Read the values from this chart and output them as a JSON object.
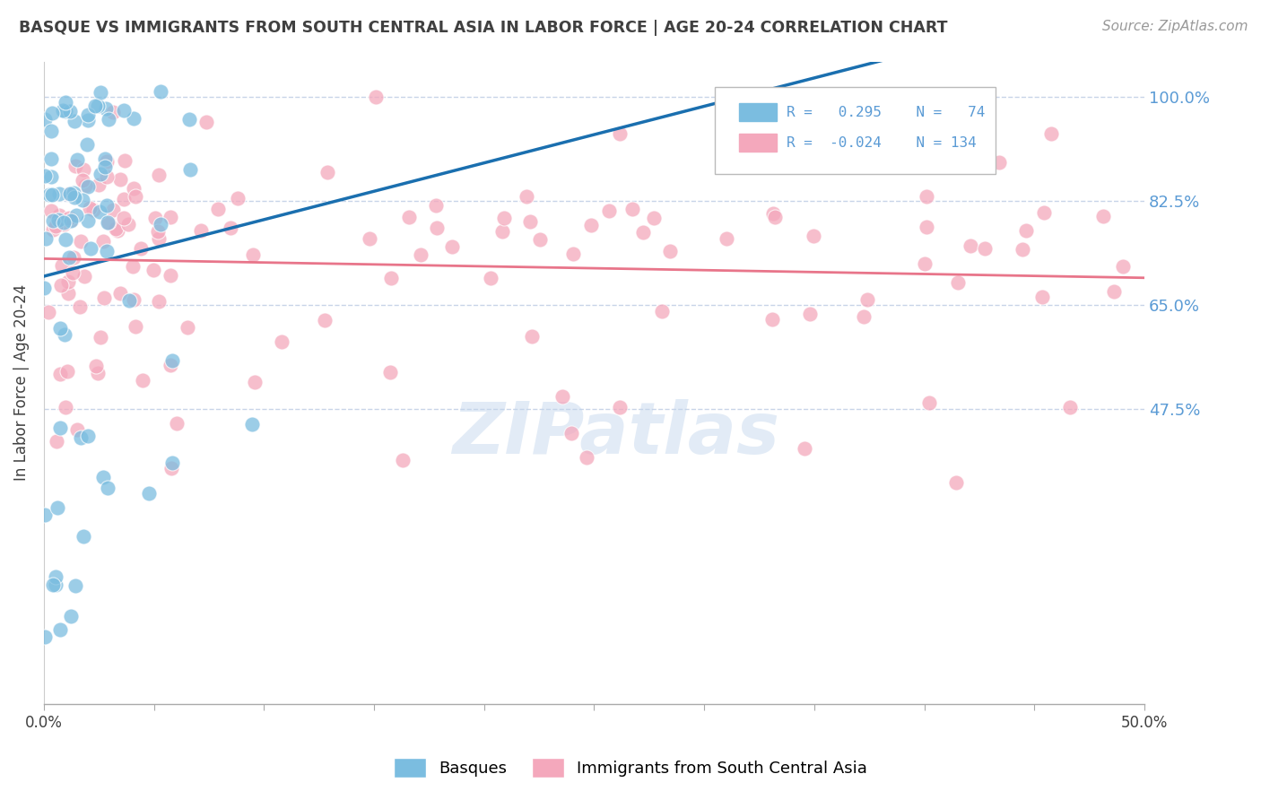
{
  "title": "BASQUE VS IMMIGRANTS FROM SOUTH CENTRAL ASIA IN LABOR FORCE | AGE 20-24 CORRELATION CHART",
  "source": "Source: ZipAtlas.com",
  "ylabel": "In Labor Force | Age 20-24",
  "xlim": [
    0.0,
    0.5
  ],
  "ylim": [
    -0.02,
    1.06
  ],
  "yticks": [
    0.475,
    0.65,
    0.825,
    1.0
  ],
  "ytick_labels": [
    "47.5%",
    "65.0%",
    "82.5%",
    "100.0%"
  ],
  "xticks": [
    0.0,
    0.05,
    0.1,
    0.15,
    0.2,
    0.25,
    0.3,
    0.35,
    0.4,
    0.45,
    0.5
  ],
  "xtick_labels": [
    "0.0%",
    "",
    "",
    "",
    "",
    "",
    "",
    "",
    "",
    "",
    "50.0%"
  ],
  "blue_R": 0.295,
  "blue_N": 74,
  "pink_R": -0.024,
  "pink_N": 134,
  "blue_color": "#7bbde0",
  "pink_color": "#f4a8bc",
  "blue_line_color": "#1a6faf",
  "pink_line_color": "#e8758a",
  "watermark": "ZIPatlas",
  "background_color": "#ffffff",
  "grid_color": "#c8d4e8",
  "title_color": "#404040",
  "right_axis_color": "#5b9bd5",
  "seed": 12345
}
